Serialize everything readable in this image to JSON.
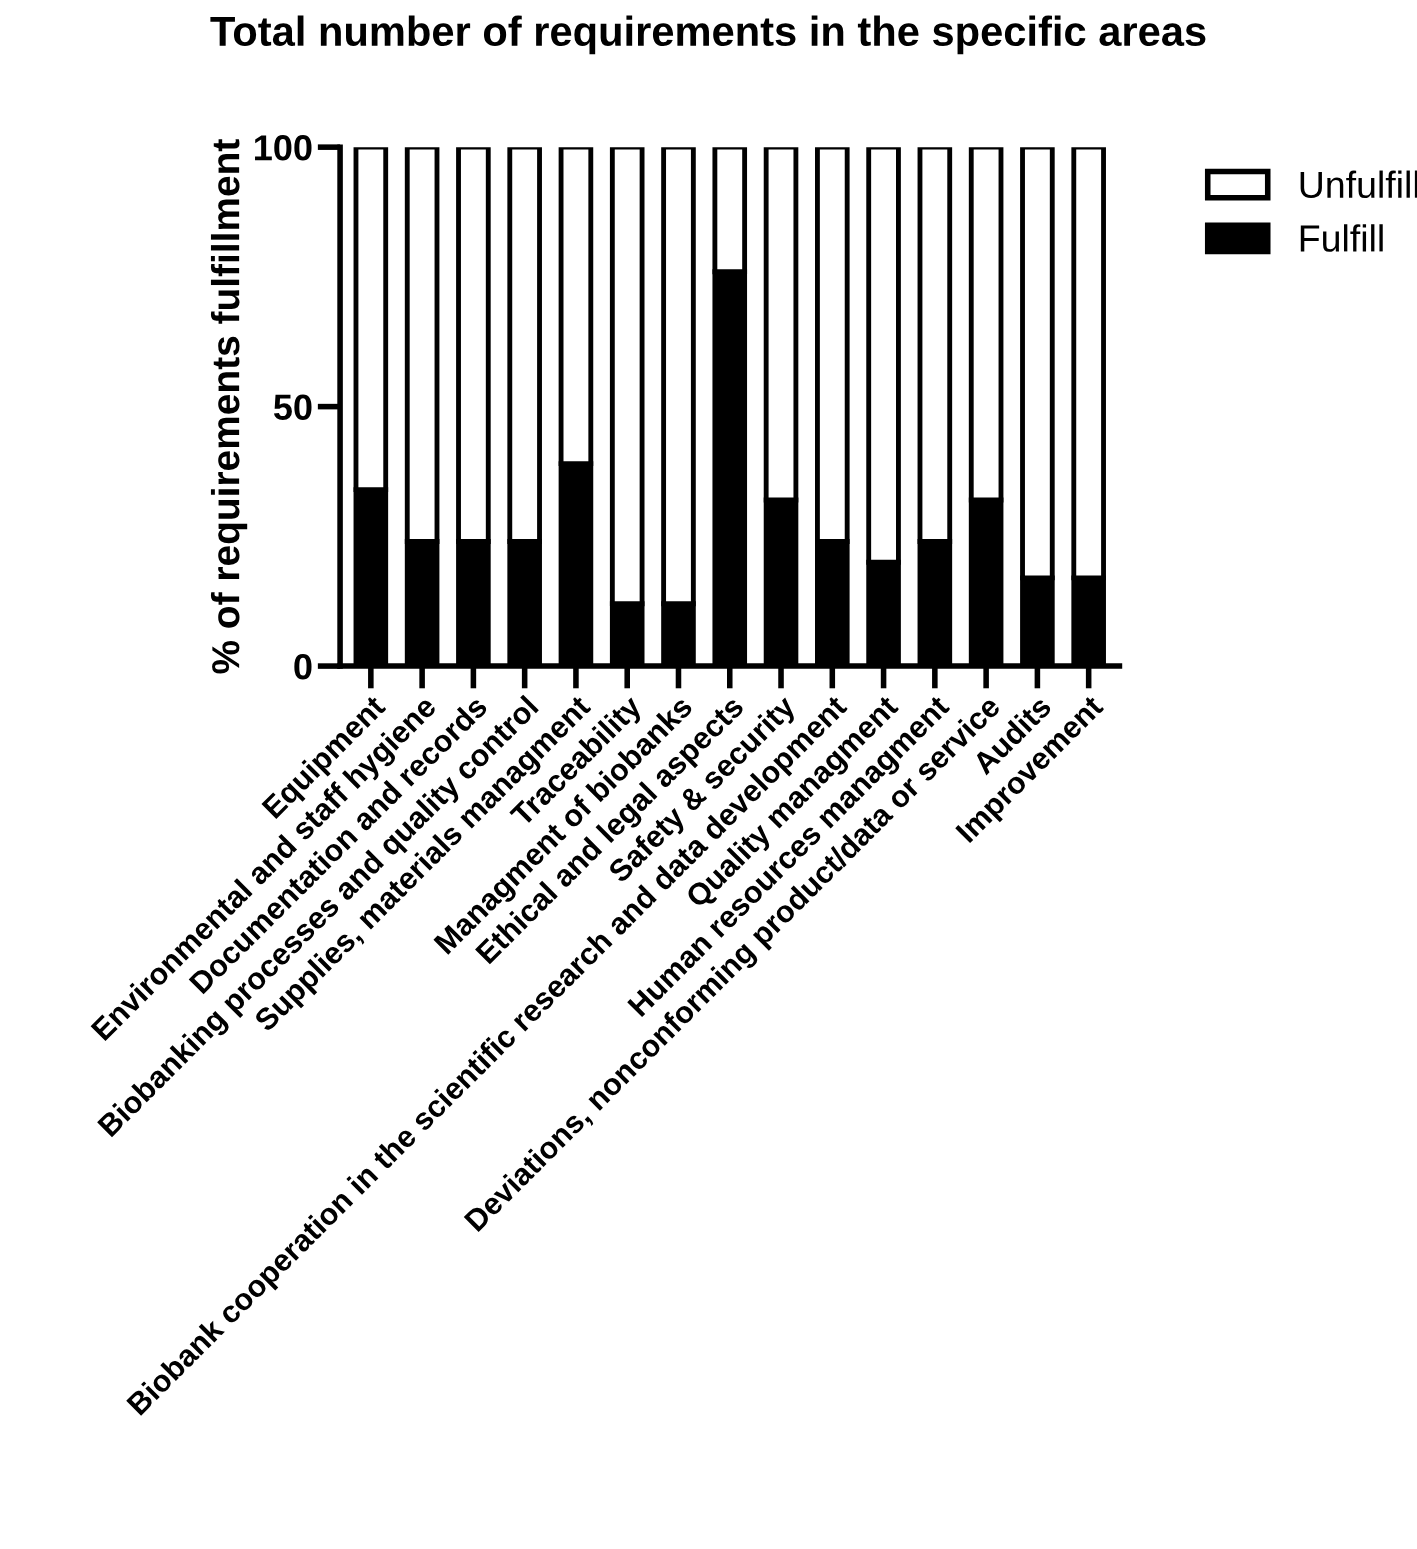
{
  "chart_data": {
    "type": "bar",
    "title": "Total number of requirements in the specific areas",
    "ylabel": "% of requirements fulfillment",
    "categories": [
      "Equipment",
      "Environmental and staff hygiene",
      "Documentation and records",
      "Biobanking processes and quality control",
      "Supplies, materials managment",
      "Traceability",
      "Managment of biobanks",
      "Ethical and legal aspects",
      "Safety & security",
      "Biobank cooperation in the scientific research and data development",
      "Quality managment",
      "Human resources managment",
      "Deviations, nonconforming product/data or service",
      "Audits",
      "Improvement"
    ],
    "stacked": true,
    "series": [
      {
        "name": "Fulfill",
        "color": "#000000",
        "values": [
          34,
          24,
          24,
          24,
          39,
          12,
          12,
          76,
          32,
          24,
          20,
          24,
          32,
          17,
          17
        ]
      },
      {
        "name": "Unfulfill",
        "color": "#ffffff",
        "values": [
          66,
          76,
          76,
          76,
          61,
          88,
          88,
          24,
          68,
          76,
          80,
          76,
          68,
          83,
          83
        ]
      }
    ],
    "ylim": [
      0,
      100
    ],
    "yticks": [
      0,
      50,
      100
    ],
    "grid": false,
    "legend": "top right"
  }
}
